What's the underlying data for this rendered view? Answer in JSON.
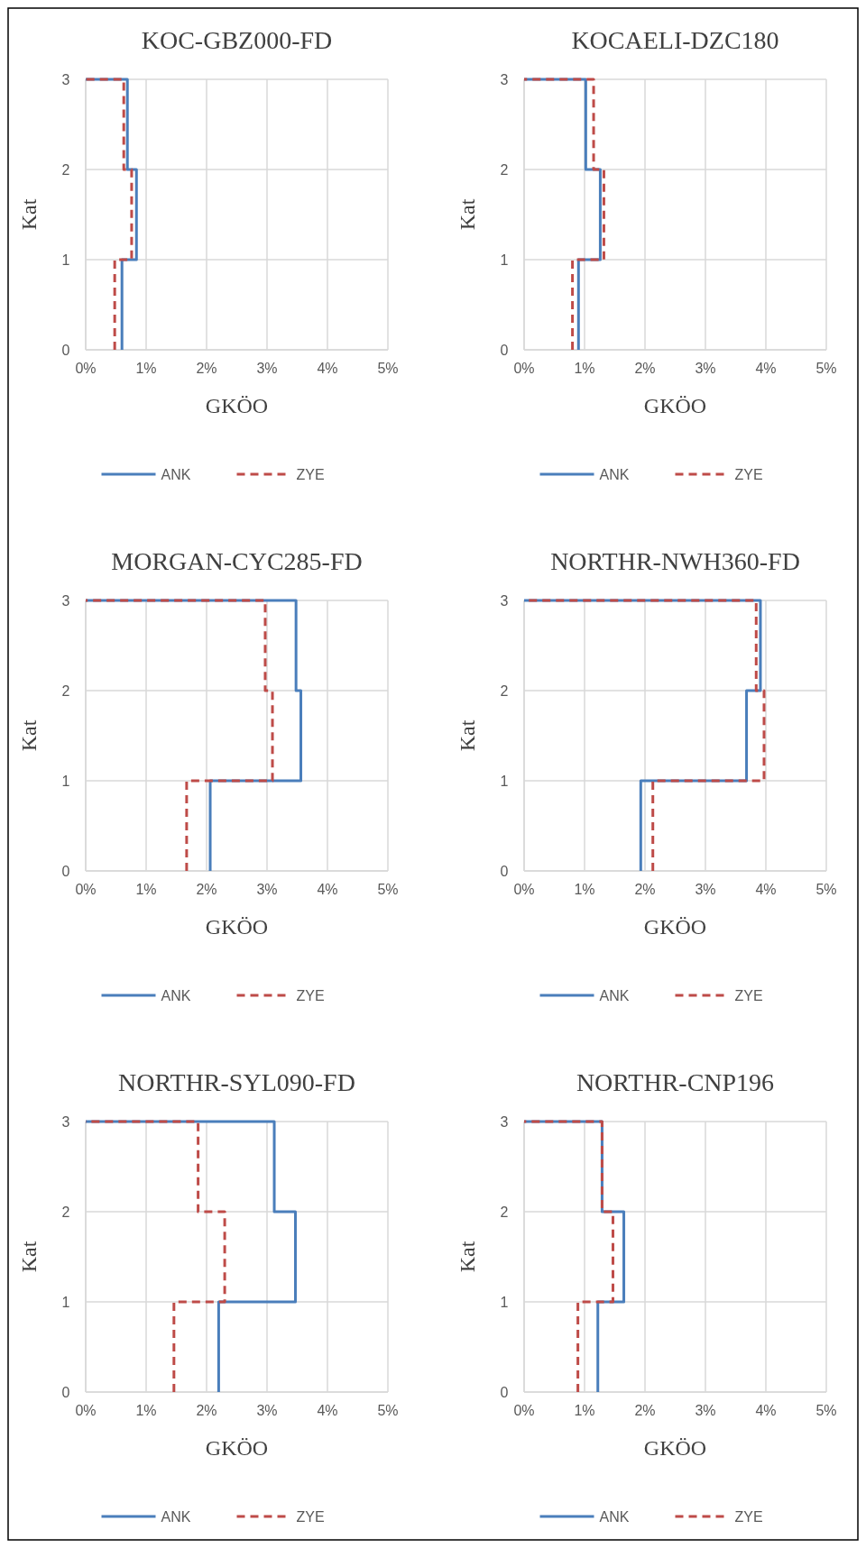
{
  "chart_data": [
    {
      "type": "line",
      "title": "KOC-GBZ000-FD",
      "xlabel": "GKÖO",
      "ylabel": "Kat",
      "xlim": [
        0,
        5
      ],
      "xticks": [
        {
          "value": 0,
          "label": "0%"
        },
        {
          "value": 1,
          "label": "1%"
        },
        {
          "value": 2,
          "label": "2%"
        },
        {
          "value": 3,
          "label": "3%"
        },
        {
          "value": 4,
          "label": "4%"
        },
        {
          "value": 5,
          "label": "5%"
        }
      ],
      "ylim": [
        0,
        3
      ],
      "yticks": [
        0,
        1,
        2,
        3
      ],
      "grid": true,
      "legend": "bottom",
      "series": [
        {
          "name": "ANK",
          "color": "#4a7ebb",
          "line_style": "solid",
          "x": [
            0.6,
            0.6,
            0.84,
            0.84,
            0.69,
            0.69,
            0
          ],
          "values": [
            0,
            1,
            1,
            2,
            2,
            3,
            3
          ]
        },
        {
          "name": "ZYE",
          "color": "#be4b48",
          "line_style": "dashed",
          "x": [
            0.48,
            0.48,
            0.76,
            0.76,
            0.63,
            0.63,
            0
          ],
          "values": [
            0,
            1,
            1,
            2,
            2,
            3,
            3
          ]
        }
      ]
    },
    {
      "type": "line",
      "title": "KOCAELI-DZC180",
      "xlabel": "GKÖO",
      "ylabel": "Kat",
      "xlim": [
        0,
        5
      ],
      "xticks": [
        {
          "value": 0,
          "label": "0%"
        },
        {
          "value": 1,
          "label": "1%"
        },
        {
          "value": 2,
          "label": "2%"
        },
        {
          "value": 3,
          "label": "3%"
        },
        {
          "value": 4,
          "label": "4%"
        },
        {
          "value": 5,
          "label": "5%"
        }
      ],
      "ylim": [
        0,
        3
      ],
      "yticks": [
        0,
        1,
        2,
        3
      ],
      "grid": true,
      "legend": "bottom",
      "series": [
        {
          "name": "ANK",
          "color": "#4a7ebb",
          "line_style": "solid",
          "x": [
            0.9,
            0.9,
            1.26,
            1.26,
            1.02,
            1.02,
            0
          ],
          "values": [
            0,
            1,
            1,
            2,
            2,
            3,
            3
          ]
        },
        {
          "name": "ZYE",
          "color": "#be4b48",
          "line_style": "dashed",
          "x": [
            0.8,
            0.8,
            1.32,
            1.32,
            1.15,
            1.15,
            0
          ],
          "values": [
            0,
            1,
            1,
            2,
            2,
            3,
            3
          ]
        }
      ]
    },
    {
      "type": "line",
      "title": "MORGAN-CYC285-FD",
      "xlabel": "GKÖO",
      "ylabel": "Kat",
      "xlim": [
        0,
        5
      ],
      "xticks": [
        {
          "value": 0,
          "label": "0%"
        },
        {
          "value": 1,
          "label": "1%"
        },
        {
          "value": 2,
          "label": "2%"
        },
        {
          "value": 3,
          "label": "3%"
        },
        {
          "value": 4,
          "label": "4%"
        },
        {
          "value": 5,
          "label": "5%"
        }
      ],
      "ylim": [
        0,
        3
      ],
      "yticks": [
        0,
        1,
        2,
        3
      ],
      "grid": true,
      "legend": "bottom",
      "series": [
        {
          "name": "ANK",
          "color": "#4a7ebb",
          "line_style": "solid",
          "x": [
            2.06,
            2.06,
            3.56,
            3.56,
            3.48,
            3.48,
            0
          ],
          "values": [
            0,
            1,
            1,
            2,
            2,
            3,
            3
          ]
        },
        {
          "name": "ZYE",
          "color": "#be4b48",
          "line_style": "dashed",
          "x": [
            1.67,
            1.67,
            3.09,
            3.09,
            2.97,
            2.97,
            0
          ],
          "values": [
            0,
            1,
            1,
            2,
            2,
            3,
            3
          ]
        }
      ]
    },
    {
      "type": "line",
      "title": "NORTHR-NWH360-FD",
      "xlabel": "GKÖO",
      "ylabel": "Kat",
      "xlim": [
        0,
        5
      ],
      "xticks": [
        {
          "value": 0,
          "label": "0%"
        },
        {
          "value": 1,
          "label": "1%"
        },
        {
          "value": 2,
          "label": "2%"
        },
        {
          "value": 3,
          "label": "3%"
        },
        {
          "value": 4,
          "label": "4%"
        },
        {
          "value": 5,
          "label": "5%"
        }
      ],
      "ylim": [
        0,
        3
      ],
      "yticks": [
        0,
        1,
        2,
        3
      ],
      "grid": true,
      "legend": "bottom",
      "series": [
        {
          "name": "ANK",
          "color": "#4a7ebb",
          "line_style": "solid",
          "x": [
            1.93,
            1.93,
            3.68,
            3.68,
            3.91,
            3.91,
            0
          ],
          "values": [
            0,
            1,
            1,
            2,
            2,
            3,
            3
          ]
        },
        {
          "name": "ZYE",
          "color": "#be4b48",
          "line_style": "dashed",
          "x": [
            2.13,
            2.13,
            3.97,
            3.97,
            3.84,
            3.84,
            0
          ],
          "values": [
            0,
            1,
            1,
            2,
            2,
            3,
            3
          ]
        }
      ]
    },
    {
      "type": "line",
      "title": "NORTHR-SYL090-FD",
      "xlabel": "GKÖO",
      "ylabel": "Kat",
      "xlim": [
        0,
        5
      ],
      "xticks": [
        {
          "value": 0,
          "label": "0%"
        },
        {
          "value": 1,
          "label": "1%"
        },
        {
          "value": 2,
          "label": "2%"
        },
        {
          "value": 3,
          "label": "3%"
        },
        {
          "value": 4,
          "label": "4%"
        },
        {
          "value": 5,
          "label": "5%"
        }
      ],
      "ylim": [
        0,
        3
      ],
      "yticks": [
        0,
        1,
        2,
        3
      ],
      "grid": true,
      "legend": "bottom",
      "series": [
        {
          "name": "ANK",
          "color": "#4a7ebb",
          "line_style": "solid",
          "x": [
            2.2,
            2.2,
            3.47,
            3.47,
            3.12,
            3.12,
            0
          ],
          "values": [
            0,
            1,
            1,
            2,
            2,
            3,
            3
          ]
        },
        {
          "name": "ZYE",
          "color": "#be4b48",
          "line_style": "dashed",
          "x": [
            1.46,
            1.46,
            2.3,
            2.3,
            1.86,
            1.86,
            0
          ],
          "values": [
            0,
            1,
            1,
            2,
            2,
            3,
            3
          ]
        }
      ]
    },
    {
      "type": "line",
      "title": "NORTHR-CNP196",
      "xlabel": "GKÖO",
      "ylabel": "Kat",
      "xlim": [
        0,
        5
      ],
      "xticks": [
        {
          "value": 0,
          "label": "0%"
        },
        {
          "value": 1,
          "label": "1%"
        },
        {
          "value": 2,
          "label": "2%"
        },
        {
          "value": 3,
          "label": "3%"
        },
        {
          "value": 4,
          "label": "4%"
        },
        {
          "value": 5,
          "label": "5%"
        }
      ],
      "ylim": [
        0,
        3
      ],
      "yticks": [
        0,
        1,
        2,
        3
      ],
      "grid": true,
      "legend": "bottom",
      "series": [
        {
          "name": "ANK",
          "color": "#4a7ebb",
          "line_style": "solid",
          "x": [
            1.22,
            1.22,
            1.65,
            1.65,
            1.29,
            1.29,
            0
          ],
          "values": [
            0,
            1,
            1,
            2,
            2,
            3,
            3
          ]
        },
        {
          "name": "ZYE",
          "color": "#be4b48",
          "line_style": "dashed",
          "x": [
            0.89,
            0.89,
            1.47,
            1.47,
            1.29,
            1.29,
            0
          ],
          "values": [
            0,
            1,
            1,
            2,
            2,
            3,
            3
          ]
        }
      ]
    }
  ]
}
